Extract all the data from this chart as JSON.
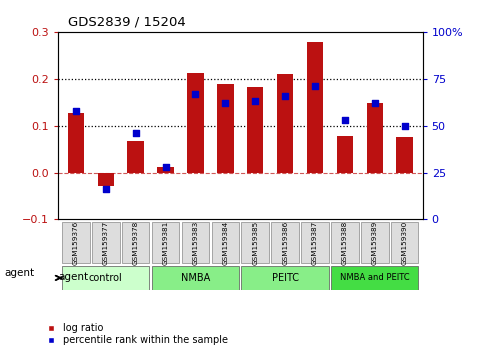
{
  "title": "GDS2839 / 15204",
  "samples": [
    "GSM159376",
    "GSM159377",
    "GSM159378",
    "GSM159381",
    "GSM159383",
    "GSM159384",
    "GSM159385",
    "GSM159386",
    "GSM159387",
    "GSM159388",
    "GSM159389",
    "GSM159390"
  ],
  "log_ratio": [
    0.128,
    -0.028,
    0.068,
    0.012,
    0.213,
    0.188,
    0.182,
    0.21,
    0.278,
    0.078,
    0.148,
    0.075
  ],
  "percentile_rank": [
    58,
    16,
    46,
    28,
    67,
    62,
    63,
    66,
    71,
    53,
    62,
    50
  ],
  "bar_color": "#bb1111",
  "dot_color": "#0000cc",
  "ylim_left": [
    -0.1,
    0.3
  ],
  "ylim_right": [
    0,
    100
  ],
  "yticks_left": [
    -0.1,
    0.0,
    0.1,
    0.2,
    0.3
  ],
  "yticks_right": [
    0,
    25,
    50,
    75,
    100
  ],
  "hlines": [
    0.1,
    0.2
  ],
  "zero_line": 0.0,
  "group_configs": [
    {
      "label": "control",
      "indices": [
        0,
        1,
        2
      ],
      "color": "#ccffcc"
    },
    {
      "label": "NMBA",
      "indices": [
        3,
        4,
        5
      ],
      "color": "#88ee88"
    },
    {
      "label": "PEITC",
      "indices": [
        6,
        7,
        8
      ],
      "color": "#88ee88"
    },
    {
      "label": "NMBA and PEITC",
      "indices": [
        9,
        10,
        11
      ],
      "color": "#44dd44"
    }
  ],
  "agent_label": "agent",
  "legend_bar_label": "log ratio",
  "legend_dot_label": "percentile rank within the sample",
  "background_color": "#ffffff",
  "plot_bg_color": "#ffffff"
}
